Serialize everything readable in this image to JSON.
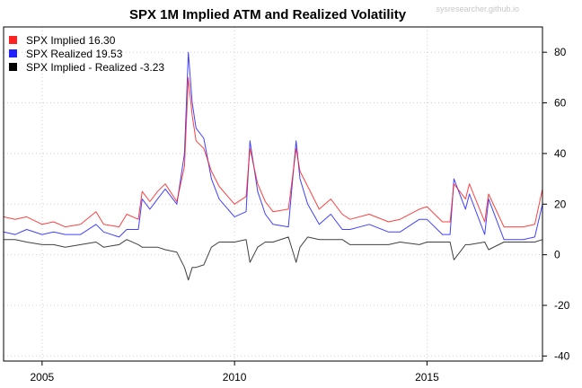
{
  "watermark": "sysresearcher.github.io",
  "colors": {
    "implied": "#ff2020",
    "realized": "#2020ff",
    "spread": "#000000",
    "grid": "#d0d0d0"
  },
  "chart_data": {
    "type": "line",
    "title": "SPX 1M Implied ATM and Realized Volatility",
    "xlabel": "",
    "ylabel": "",
    "xlim": [
      2004.0,
      2018.0
    ],
    "ylim": [
      -42,
      90
    ],
    "x_ticks": [
      2005,
      2010,
      2015
    ],
    "x_tick_labels": [
      "2005",
      "2010",
      "2015"
    ],
    "y_ticks": [
      -40,
      -20,
      0,
      20,
      40,
      60,
      80
    ],
    "y_tick_labels": [
      "-40",
      "-20",
      "0",
      "20",
      "40",
      "60",
      "80"
    ],
    "y_axis_side": "right",
    "grid": true,
    "legend_position": "top-left",
    "legend": [
      {
        "label": "SPX Implied 16.30",
        "color": "#ff2020"
      },
      {
        "label": "SPX Realized 19.53",
        "color": "#2020ff"
      },
      {
        "label": "SPX Implied - Realized -3.23",
        "color": "#000000"
      }
    ],
    "series": [
      {
        "name": "SPX Implied",
        "color": "#ff2020",
        "x": [
          2004.0,
          2004.3,
          2004.6,
          2005.0,
          2005.3,
          2005.6,
          2006.0,
          2006.4,
          2006.6,
          2007.0,
          2007.2,
          2007.5,
          2007.6,
          2007.8,
          2008.0,
          2008.2,
          2008.5,
          2008.7,
          2008.8,
          2008.9,
          2009.0,
          2009.2,
          2009.4,
          2009.6,
          2010.0,
          2010.3,
          2010.4,
          2010.6,
          2010.8,
          2011.0,
          2011.4,
          2011.6,
          2011.7,
          2011.9,
          2012.2,
          2012.5,
          2012.8,
          2013.0,
          2013.5,
          2014.0,
          2014.3,
          2014.8,
          2015.0,
          2015.4,
          2015.6,
          2015.7,
          2016.0,
          2016.1,
          2016.5,
          2016.6,
          2017.0,
          2017.5,
          2017.8,
          2018.0
        ],
        "y": [
          15,
          14,
          15,
          12,
          13,
          11,
          12,
          17,
          12,
          11,
          16,
          14,
          25,
          21,
          25,
          28,
          21,
          35,
          70,
          55,
          45,
          42,
          33,
          27,
          20,
          23,
          42,
          28,
          21,
          17,
          18,
          42,
          33,
          27,
          18,
          22,
          16,
          14,
          16,
          13,
          14,
          18,
          19,
          13,
          13,
          28,
          22,
          28,
          13,
          24,
          11,
          11,
          12,
          26
        ]
      },
      {
        "name": "SPX Realized",
        "color": "#2020ff",
        "x": [
          2004.0,
          2004.3,
          2004.6,
          2005.0,
          2005.3,
          2005.6,
          2006.0,
          2006.4,
          2006.6,
          2007.0,
          2007.2,
          2007.5,
          2007.6,
          2007.8,
          2008.0,
          2008.2,
          2008.5,
          2008.7,
          2008.8,
          2008.9,
          2009.0,
          2009.2,
          2009.4,
          2009.6,
          2010.0,
          2010.3,
          2010.4,
          2010.6,
          2010.8,
          2011.0,
          2011.4,
          2011.6,
          2011.7,
          2011.9,
          2012.2,
          2012.5,
          2012.8,
          2013.0,
          2013.5,
          2014.0,
          2014.3,
          2014.8,
          2015.0,
          2015.4,
          2015.6,
          2015.7,
          2016.0,
          2016.1,
          2016.5,
          2016.6,
          2017.0,
          2017.5,
          2017.8,
          2018.0
        ],
        "y": [
          9,
          8,
          10,
          8,
          9,
          8,
          8,
          12,
          9,
          7,
          10,
          10,
          22,
          18,
          22,
          26,
          20,
          40,
          80,
          60,
          50,
          46,
          30,
          22,
          15,
          17,
          45,
          25,
          16,
          12,
          11,
          45,
          30,
          20,
          12,
          16,
          10,
          10,
          12,
          9,
          9,
          14,
          14,
          8,
          8,
          30,
          18,
          24,
          8,
          22,
          6,
          6,
          7,
          20
        ]
      },
      {
        "name": "SPX Implied - Realized",
        "color": "#000000",
        "x": [
          2004.0,
          2004.3,
          2004.6,
          2005.0,
          2005.3,
          2005.6,
          2006.0,
          2006.4,
          2006.6,
          2007.0,
          2007.2,
          2007.5,
          2007.6,
          2007.8,
          2008.0,
          2008.2,
          2008.5,
          2008.7,
          2008.8,
          2008.9,
          2009.0,
          2009.2,
          2009.4,
          2009.6,
          2010.0,
          2010.3,
          2010.4,
          2010.6,
          2010.8,
          2011.0,
          2011.4,
          2011.6,
          2011.7,
          2011.9,
          2012.2,
          2012.5,
          2012.8,
          2013.0,
          2013.5,
          2014.0,
          2014.3,
          2014.8,
          2015.0,
          2015.4,
          2015.6,
          2015.7,
          2016.0,
          2016.1,
          2016.5,
          2016.6,
          2017.0,
          2017.5,
          2017.8,
          2018.0
        ],
        "y": [
          6,
          6,
          5,
          4,
          4,
          3,
          4,
          5,
          3,
          4,
          6,
          4,
          3,
          3,
          3,
          2,
          1,
          -5,
          -10,
          -5,
          -5,
          -4,
          3,
          5,
          5,
          6,
          -3,
          3,
          5,
          5,
          7,
          -3,
          3,
          7,
          6,
          6,
          6,
          4,
          4,
          4,
          5,
          4,
          5,
          5,
          5,
          -2,
          4,
          4,
          5,
          2,
          5,
          5,
          5,
          6
        ]
      }
    ]
  }
}
